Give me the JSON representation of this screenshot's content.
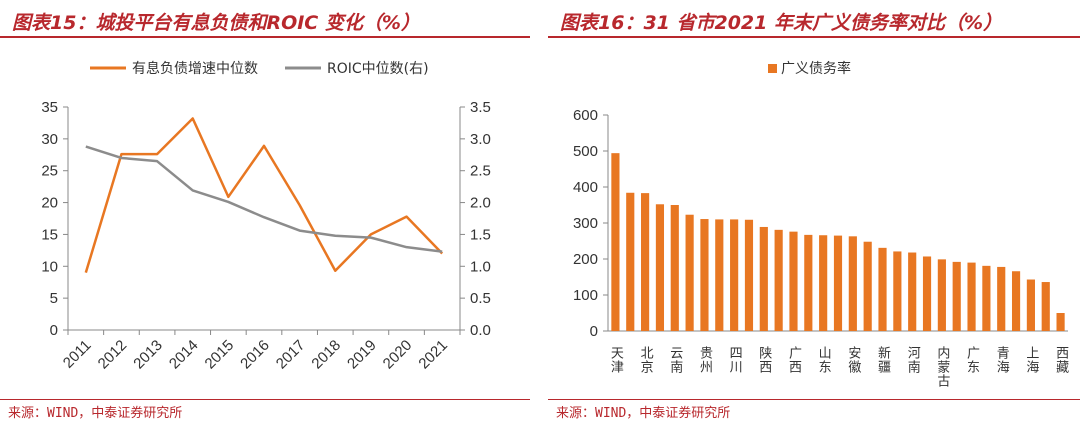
{
  "left": {
    "title": "图表15：城投平台有息负债和ROIC 变化（%）",
    "source": "来源：WIND，中泰证券研究所"
  },
  "right": {
    "title": "图表16：31 省市2021 年末广义债务率对比（%）",
    "source": "来源：WIND，中泰证券研究所"
  },
  "colors": {
    "orange": "#e87722",
    "gray": "#8c8c8c",
    "accent": "#b8282d"
  },
  "chart_data": [
    {
      "type": "line",
      "categories": [
        "2011",
        "2012",
        "2013",
        "2014",
        "2015",
        "2016",
        "2017",
        "2018",
        "2019",
        "2020",
        "2021"
      ],
      "series": [
        {
          "name": "有息负债增速中位数",
          "axis": "left",
          "values": [
            9.0,
            27.6,
            27.6,
            33.2,
            20.9,
            28.9,
            19.6,
            9.3,
            15.0,
            17.8,
            12.0
          ]
        },
        {
          "name": "ROIC中位数(右)",
          "axis": "right",
          "values": [
            2.88,
            2.7,
            2.65,
            2.19,
            2.01,
            1.77,
            1.56,
            1.48,
            1.45,
            1.3,
            1.23
          ]
        }
      ],
      "ylim": [
        0,
        35
      ],
      "yticks": [
        0,
        5,
        10,
        15,
        20,
        25,
        30,
        35
      ],
      "y2lim": [
        0,
        3.5
      ],
      "y2ticks": [
        "0.0",
        "0.5",
        "1.0",
        "1.5",
        "2.0",
        "2.5",
        "3.0",
        "3.5"
      ],
      "legend": "top",
      "grid": false
    },
    {
      "type": "bar",
      "series": [
        {
          "name": "广义债务率"
        }
      ],
      "categories": [
        "天津",
        "北京",
        "云南",
        "贵州",
        "四川",
        "陕西",
        "广西",
        "山东",
        "安徽",
        "新疆",
        "河南",
        "内蒙古",
        "广东",
        "青海",
        "上海",
        "西藏"
      ],
      "bars": [
        494,
        384,
        383,
        352,
        350,
        323,
        311,
        310,
        310,
        309,
        289,
        281,
        276,
        267,
        266,
        265,
        263,
        248,
        231,
        221,
        218,
        207,
        199,
        192,
        190,
        181,
        178,
        166,
        143,
        136,
        50
      ],
      "ylim": [
        0,
        600
      ],
      "yticks": [
        0,
        100,
        200,
        300,
        400,
        500,
        600
      ],
      "legend": "top",
      "grid": false
    }
  ]
}
